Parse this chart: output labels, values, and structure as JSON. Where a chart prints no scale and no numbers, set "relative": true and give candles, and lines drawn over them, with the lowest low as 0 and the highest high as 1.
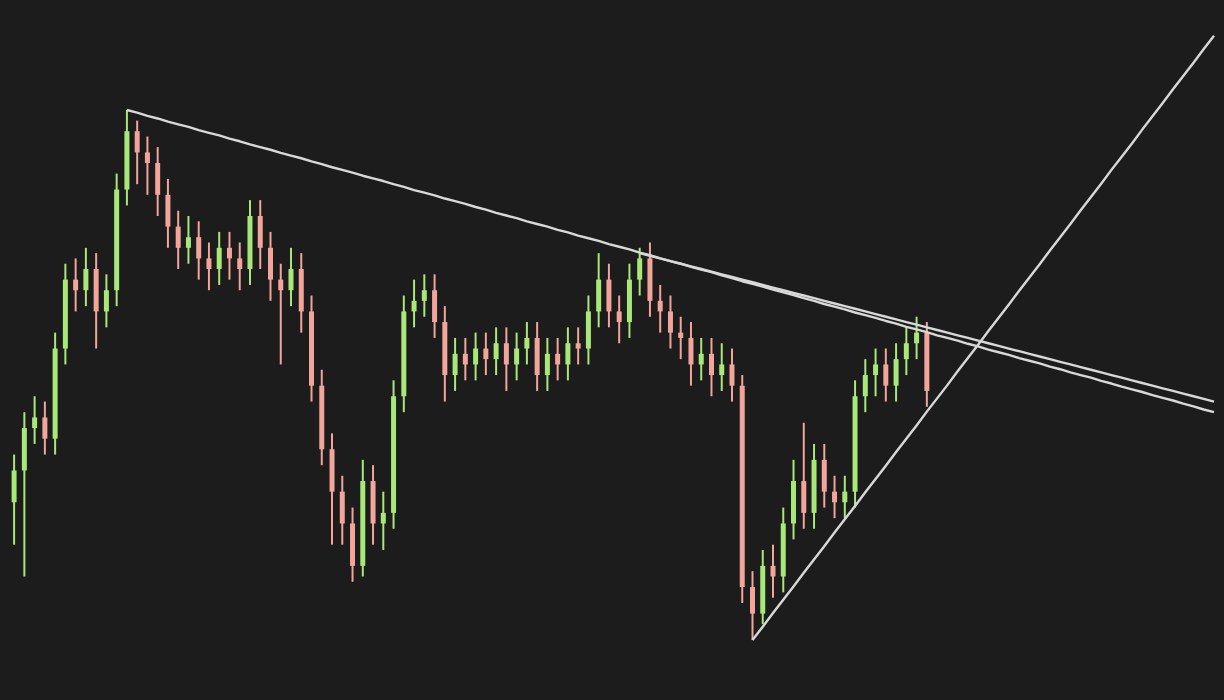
{
  "chart_data": {
    "type": "candlestick",
    "relative": true,
    "grid": false,
    "categories": [
      null,
      null,
      null,
      null,
      null,
      null,
      null,
      null,
      null,
      null,
      null,
      null,
      null,
      null,
      null,
      null,
      null,
      null,
      null,
      null,
      null,
      null,
      null,
      null,
      null,
      null,
      null,
      null,
      null,
      null,
      null,
      null,
      null,
      null,
      null,
      null,
      null,
      null,
      null,
      null,
      null,
      null,
      null,
      null,
      null,
      null,
      null,
      null,
      null,
      null,
      null,
      null,
      null,
      null,
      null,
      null,
      null,
      null,
      null,
      null,
      null,
      null,
      null,
      null,
      null,
      null,
      null,
      null,
      null,
      null,
      null,
      null,
      null,
      null,
      null,
      null,
      null,
      null,
      null,
      null,
      null,
      null,
      null,
      null,
      null,
      null,
      null,
      null,
      null,
      null,
      null,
      null,
      null,
      null,
      null,
      null,
      null,
      null,
      null,
      null,
      null,
      null,
      null,
      null,
      null,
      null,
      null,
      null,
      null,
      null,
      null,
      null,
      null,
      null,
      null,
      null,
      null,
      null
    ],
    "ohlc": [
      [
        0.26,
        0.35,
        0.18,
        0.32
      ],
      [
        0.32,
        0.43,
        0.12,
        0.4
      ],
      [
        0.4,
        0.46,
        0.37,
        0.42
      ],
      [
        0.42,
        0.45,
        0.35,
        0.38
      ],
      [
        0.38,
        0.58,
        0.35,
        0.55
      ],
      [
        0.55,
        0.71,
        0.52,
        0.68
      ],
      [
        0.68,
        0.72,
        0.62,
        0.66
      ],
      [
        0.66,
        0.74,
        0.63,
        0.7
      ],
      [
        0.7,
        0.73,
        0.55,
        0.62
      ],
      [
        0.62,
        0.69,
        0.59,
        0.66
      ],
      [
        0.66,
        0.88,
        0.63,
        0.85
      ],
      [
        0.85,
        1.0,
        0.82,
        0.96
      ],
      [
        0.96,
        0.98,
        0.86,
        0.92
      ],
      [
        0.92,
        0.95,
        0.84,
        0.9
      ],
      [
        0.9,
        0.93,
        0.8,
        0.84
      ],
      [
        0.84,
        0.87,
        0.74,
        0.78
      ],
      [
        0.78,
        0.81,
        0.7,
        0.74
      ],
      [
        0.74,
        0.8,
        0.71,
        0.76
      ],
      [
        0.76,
        0.79,
        0.68,
        0.72
      ],
      [
        0.72,
        0.75,
        0.66,
        0.7
      ],
      [
        0.7,
        0.77,
        0.67,
        0.74
      ],
      [
        0.74,
        0.77,
        0.68,
        0.72
      ],
      [
        0.72,
        0.75,
        0.66,
        0.7
      ],
      [
        0.7,
        0.83,
        0.67,
        0.8
      ],
      [
        0.8,
        0.83,
        0.7,
        0.74
      ],
      [
        0.74,
        0.77,
        0.64,
        0.68
      ],
      [
        0.68,
        0.71,
        0.52,
        0.66
      ],
      [
        0.66,
        0.74,
        0.63,
        0.7
      ],
      [
        0.7,
        0.73,
        0.58,
        0.62
      ],
      [
        0.62,
        0.65,
        0.45,
        0.48
      ],
      [
        0.48,
        0.51,
        0.33,
        0.36
      ],
      [
        0.36,
        0.39,
        0.18,
        0.28
      ],
      [
        0.28,
        0.31,
        0.18,
        0.22
      ],
      [
        0.22,
        0.25,
        0.11,
        0.14
      ],
      [
        0.14,
        0.34,
        0.12,
        0.3
      ],
      [
        0.3,
        0.33,
        0.18,
        0.22
      ],
      [
        0.22,
        0.28,
        0.17,
        0.24
      ],
      [
        0.24,
        0.49,
        0.21,
        0.46
      ],
      [
        0.46,
        0.65,
        0.43,
        0.62
      ],
      [
        0.62,
        0.68,
        0.59,
        0.64
      ],
      [
        0.64,
        0.69,
        0.61,
        0.66
      ],
      [
        0.66,
        0.69,
        0.57,
        0.6
      ],
      [
        0.6,
        0.63,
        0.45,
        0.5
      ],
      [
        0.5,
        0.57,
        0.47,
        0.54
      ],
      [
        0.54,
        0.57,
        0.49,
        0.52
      ],
      [
        0.52,
        0.58,
        0.49,
        0.55
      ],
      [
        0.55,
        0.58,
        0.5,
        0.53
      ],
      [
        0.53,
        0.59,
        0.5,
        0.56
      ],
      [
        0.56,
        0.59,
        0.47,
        0.52
      ],
      [
        0.52,
        0.58,
        0.49,
        0.55
      ],
      [
        0.55,
        0.6,
        0.52,
        0.57
      ],
      [
        0.57,
        0.6,
        0.47,
        0.5
      ],
      [
        0.5,
        0.57,
        0.47,
        0.54
      ],
      [
        0.54,
        0.57,
        0.49,
        0.52
      ],
      [
        0.52,
        0.59,
        0.49,
        0.56
      ],
      [
        0.56,
        0.59,
        0.52,
        0.55
      ],
      [
        0.55,
        0.65,
        0.52,
        0.62
      ],
      [
        0.62,
        0.73,
        0.59,
        0.68
      ],
      [
        0.68,
        0.71,
        0.59,
        0.62
      ],
      [
        0.62,
        0.65,
        0.56,
        0.6
      ],
      [
        0.6,
        0.71,
        0.57,
        0.68
      ],
      [
        0.68,
        0.74,
        0.65,
        0.72
      ],
      [
        0.72,
        0.75,
        0.61,
        0.64
      ],
      [
        0.64,
        0.67,
        0.58,
        0.62
      ],
      [
        0.62,
        0.65,
        0.55,
        0.58
      ],
      [
        0.58,
        0.61,
        0.53,
        0.57
      ],
      [
        0.57,
        0.6,
        0.48,
        0.52
      ],
      [
        0.52,
        0.57,
        0.49,
        0.54
      ],
      [
        0.54,
        0.57,
        0.46,
        0.5
      ],
      [
        0.5,
        0.56,
        0.47,
        0.52
      ],
      [
        0.52,
        0.55,
        0.45,
        0.48
      ],
      [
        0.48,
        0.5,
        0.07,
        0.1
      ],
      [
        0.1,
        0.13,
        0.0,
        0.05
      ],
      [
        0.05,
        0.17,
        0.03,
        0.14
      ],
      [
        0.14,
        0.18,
        0.08,
        0.12
      ],
      [
        0.12,
        0.25,
        0.09,
        0.22
      ],
      [
        0.22,
        0.34,
        0.19,
        0.3
      ],
      [
        0.3,
        0.41,
        0.21,
        0.24
      ],
      [
        0.24,
        0.37,
        0.21,
        0.34
      ],
      [
        0.34,
        0.37,
        0.25,
        0.28
      ],
      [
        0.28,
        0.31,
        0.23,
        0.26
      ],
      [
        0.26,
        0.31,
        0.23,
        0.28
      ],
      [
        0.28,
        0.49,
        0.25,
        0.46
      ],
      [
        0.46,
        0.53,
        0.43,
        0.5
      ],
      [
        0.5,
        0.55,
        0.46,
        0.52
      ],
      [
        0.52,
        0.55,
        0.45,
        0.48
      ],
      [
        0.48,
        0.56,
        0.45,
        0.53
      ],
      [
        0.53,
        0.59,
        0.5,
        0.56
      ],
      [
        0.56,
        0.61,
        0.53,
        0.58
      ],
      [
        0.58,
        0.6,
        0.44,
        0.47
      ],
      null,
      null,
      null,
      null,
      null,
      null,
      null,
      null,
      null,
      null,
      null,
      null,
      null,
      null,
      null,
      null,
      null,
      null,
      null,
      null,
      null,
      null,
      null,
      null,
      null,
      null,
      null,
      null
    ],
    "colors": [
      "#a8e878",
      "#a8e878",
      "#a8e878",
      "#f2a59a",
      "#a8e878",
      "#a8e878",
      "#f2a59a",
      "#a8e878",
      "#f2a59a",
      "#a8e878",
      "#a8e878",
      "#a8e878",
      "#f2a59a",
      "#f2a59a",
      "#f2a59a",
      "#f2a59a",
      "#f2a59a",
      "#a8e878",
      "#f2a59a",
      "#f2a59a",
      "#a8e878",
      "#f2a59a",
      "#f2a59a",
      "#a8e878",
      "#f2a59a",
      "#f2a59a",
      "#f2a59a",
      "#a8e878",
      "#f2a59a",
      "#f2a59a",
      "#f2a59a",
      "#f2a59a",
      "#f2a59a",
      "#f2a59a",
      "#a8e878",
      "#f2a59a",
      "#a8e878",
      "#a8e878",
      "#a8e878",
      "#a8e878",
      "#a8e878",
      "#f2a59a",
      "#f2a59a",
      "#a8e878",
      "#f2a59a",
      "#a8e878",
      "#f2a59a",
      "#a8e878",
      "#f2a59a",
      "#a8e878",
      "#a8e878",
      "#f2a59a",
      "#a8e878",
      "#f2a59a",
      "#a8e878",
      "#f2a59a",
      "#a8e878",
      "#a8e878",
      "#f2a59a",
      "#f2a59a",
      "#a8e878",
      "#a8e878",
      "#f2a59a",
      "#f2a59a",
      "#f2a59a",
      "#f2a59a",
      "#f2a59a",
      "#a8e878",
      "#f2a59a",
      "#a8e878",
      "#f2a59a",
      "#f2a59a",
      "#f2a59a",
      "#a8e878",
      "#f2a59a",
      "#a8e878",
      "#a8e878",
      "#f2a59a",
      "#a8e878",
      "#f2a59a",
      "#f2a59a",
      "#a8e878",
      "#a8e878",
      "#a8e878",
      "#a8e878",
      "#f2a59a",
      "#a8e878",
      "#a8e878",
      "#a8e878",
      "#f2a59a",
      null,
      null,
      null,
      null,
      null,
      null,
      null,
      null,
      null,
      null,
      null,
      null,
      null,
      null,
      null,
      null,
      null,
      null,
      null,
      null,
      null,
      null,
      null,
      null,
      null,
      null,
      null,
      null
    ],
    "series": [
      {
        "type": "line",
        "color": "#d8d8d8",
        "values": [
          null,
          null,
          null,
          null,
          null,
          null,
          null,
          null,
          null,
          null,
          null,
          1.0,
          0.995,
          0.989,
          0.984,
          0.978,
          0.973,
          0.968,
          0.962,
          0.957,
          0.952,
          0.946,
          0.941,
          0.935,
          0.93,
          0.925,
          0.919,
          0.914,
          0.909,
          0.903,
          0.898,
          0.892,
          0.887,
          0.882,
          0.876,
          0.871,
          0.866,
          0.86,
          0.855,
          0.849,
          0.844,
          0.839,
          0.833,
          0.828,
          0.823,
          0.817,
          0.812,
          0.806,
          0.801,
          0.796,
          0.79,
          0.785,
          0.78,
          0.774,
          0.769,
          0.763,
          0.758,
          0.753,
          0.747,
          0.742,
          0.737,
          0.731,
          0.726,
          0.72,
          0.715,
          0.71,
          0.704,
          0.699,
          0.694,
          0.688,
          0.683,
          0.677,
          0.672,
          0.667,
          0.661,
          0.656,
          0.651,
          0.645,
          0.64,
          0.634,
          0.629,
          0.624,
          0.618,
          0.613,
          0.608,
          0.602,
          0.597,
          0.591,
          0.586,
          0.581,
          0.575,
          0.57,
          0.565,
          0.559,
          0.554,
          0.548,
          0.543,
          0.538,
          0.532,
          0.527,
          0.522,
          0.516,
          0.511,
          0.505,
          0.5,
          0.495,
          0.489,
          0.484,
          0.478,
          0.473,
          0.468,
          0.462,
          0.457,
          0.452,
          0.446,
          0.441,
          0.435,
          0.43
        ]
      },
      {
        "type": "line",
        "color": "#d8d8d8",
        "values": [
          null,
          null,
          null,
          null,
          null,
          null,
          null,
          null,
          null,
          null,
          null,
          null,
          null,
          null,
          null,
          null,
          null,
          null,
          null,
          null,
          null,
          null,
          null,
          null,
          null,
          null,
          null,
          null,
          null,
          null,
          null,
          null,
          null,
          null,
          null,
          null,
          null,
          null,
          null,
          null,
          null,
          null,
          null,
          null,
          null,
          null,
          null,
          null,
          null,
          null,
          null,
          null,
          null,
          null,
          null,
          null,
          null,
          null,
          null,
          null,
          null,
          0.73,
          0.725,
          0.72,
          0.715,
          0.71,
          0.705,
          0.7,
          0.695,
          0.69,
          0.685,
          0.68,
          0.675,
          0.67,
          0.665,
          0.66,
          0.655,
          0.65,
          0.645,
          0.64,
          0.635,
          0.63,
          0.625,
          0.62,
          0.615,
          0.61,
          0.605,
          0.6,
          0.595,
          0.59,
          0.585,
          0.58,
          0.575,
          0.57,
          0.565,
          0.56,
          0.555,
          0.55,
          0.545,
          0.54,
          0.535,
          0.53,
          0.525,
          0.52,
          0.515,
          0.51,
          0.505,
          0.5,
          0.495,
          0.49,
          0.485,
          0.48,
          0.475,
          0.47,
          0.465,
          0.46,
          0.455,
          0.45
        ]
      },
      {
        "type": "line",
        "color": "#d8d8d8",
        "values": [
          null,
          null,
          null,
          null,
          null,
          null,
          null,
          null,
          null,
          null,
          null,
          null,
          null,
          null,
          null,
          null,
          null,
          null,
          null,
          null,
          null,
          null,
          null,
          null,
          null,
          null,
          null,
          null,
          null,
          null,
          null,
          null,
          null,
          null,
          null,
          null,
          null,
          null,
          null,
          null,
          null,
          null,
          null,
          null,
          null,
          null,
          null,
          null,
          null,
          null,
          null,
          null,
          null,
          null,
          null,
          null,
          null,
          null,
          null,
          null,
          null,
          null,
          null,
          null,
          null,
          null,
          null,
          null,
          null,
          null,
          null,
          null,
          0.0,
          0.025,
          0.051,
          0.076,
          0.101,
          0.127,
          0.152,
          0.177,
          0.203,
          0.228,
          0.253,
          0.279,
          0.304,
          0.329,
          0.355,
          0.38,
          0.405,
          0.431,
          0.456,
          0.481,
          0.507,
          0.532,
          0.557,
          0.583,
          0.608,
          0.633,
          0.659,
          0.684,
          0.709,
          0.735,
          0.76,
          0.785,
          0.811,
          0.836,
          0.861,
          0.887,
          0.912,
          0.937,
          0.963,
          0.988,
          1.013,
          1.039,
          1.064,
          1.089,
          1.115,
          1.14
        ]
      }
    ]
  }
}
